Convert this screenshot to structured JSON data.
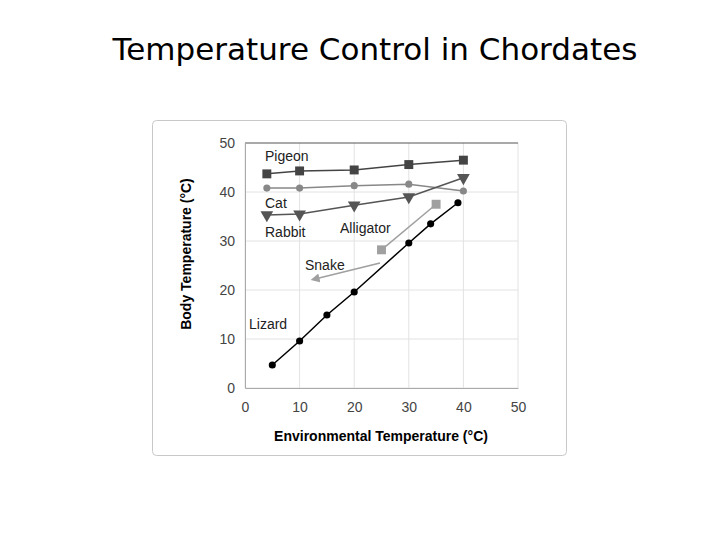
{
  "chart_data": {
    "type": "line",
    "title": "Temperature Control in Chordates",
    "x_label": "Environmental Temperature (°C)",
    "y_label": "Body Temperature (°C)",
    "xlim": [
      0,
      50
    ],
    "ylim": [
      0,
      50
    ],
    "xticks": [
      0,
      10,
      20,
      30,
      40,
      50
    ],
    "yticks": [
      0,
      10,
      20,
      30,
      40,
      50
    ],
    "grid": true,
    "series": [
      {
        "name": "Pigeon",
        "color": "#444444",
        "marker": "square",
        "x": [
          4,
          10,
          20,
          30,
          40
        ],
        "values": [
          43.7,
          44.3,
          44.5,
          45.6,
          46.5
        ]
      },
      {
        "name": "Cat",
        "color": "#888888",
        "marker": "circle",
        "x": [
          4,
          10,
          20,
          30,
          40
        ],
        "values": [
          40.8,
          40.8,
          41.3,
          41.6,
          40.2
        ]
      },
      {
        "name": "Rabbit",
        "color": "#555555",
        "marker": "triangle-down",
        "x": [
          4,
          10,
          20,
          30,
          40
        ],
        "values": [
          35.3,
          35.5,
          37.3,
          39,
          42.9
        ]
      },
      {
        "name": "Snake",
        "color": "#a0a0a0",
        "marker": "square",
        "x": [
          25,
          35
        ],
        "values": [
          28.2,
          37.5
        ]
      },
      {
        "name": "Lizard",
        "color": "#000000",
        "marker": "circle",
        "x": [
          5,
          10,
          15,
          20,
          30,
          34,
          39
        ],
        "values": [
          4.7,
          9.6,
          14.9,
          19.6,
          29.6,
          33.5,
          37.8
        ]
      }
    ],
    "annotations": [
      "Alligator"
    ]
  }
}
